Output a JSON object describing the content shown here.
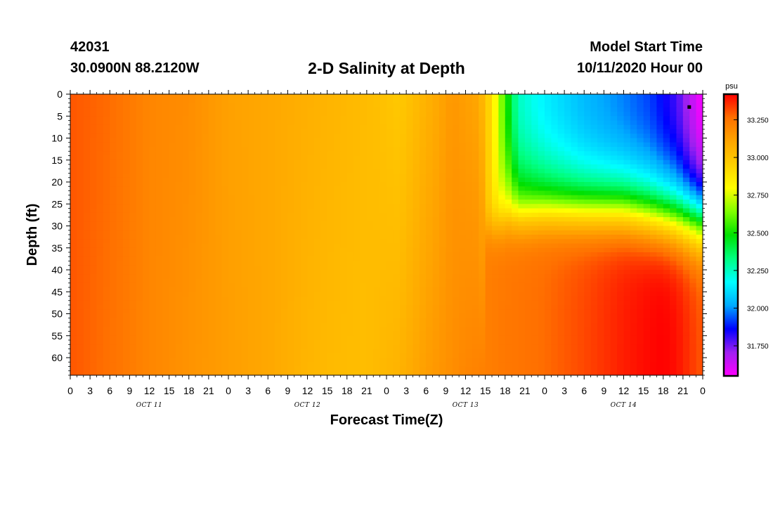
{
  "header": {
    "station_id": "42031",
    "location": "30.0900N 88.2120W",
    "title": "2-D Salinity at Depth",
    "model_start_label": "Model Start Time",
    "model_start_value": "10/11/2020 Hour 00"
  },
  "chart_data": {
    "type": "heatmap",
    "title": "2-D Salinity at Depth",
    "xlabel": "Forecast Time(Z)",
    "ylabel": "Depth (ft)",
    "x_range_hours": [
      0,
      96
    ],
    "y_range_ft": [
      0,
      64
    ],
    "x_tick_labels": [
      "0",
      "3",
      "6",
      "9",
      "12",
      "15",
      "18",
      "21",
      "0",
      "3",
      "6",
      "9",
      "12",
      "15",
      "18",
      "21",
      "0",
      "3",
      "6",
      "9",
      "12",
      "15",
      "18",
      "21",
      "0",
      "3",
      "6",
      "9",
      "12",
      "15",
      "18",
      "21",
      "0"
    ],
    "y_ticks": [
      0,
      5,
      10,
      15,
      20,
      25,
      30,
      35,
      40,
      45,
      50,
      55,
      60
    ],
    "day_labels": [
      {
        "label": "OCT 11",
        "center_hour": 12
      },
      {
        "label": "OCT 12",
        "center_hour": 36
      },
      {
        "label": "OCT 13",
        "center_hour": 60
      },
      {
        "label": "OCT 14",
        "center_hour": 84
      }
    ],
    "colorbar": {
      "unit": "psu",
      "min": 31.55,
      "max": 33.42,
      "ticks": [
        31.75,
        32.0,
        32.25,
        32.5,
        32.75,
        33.0,
        33.25
      ],
      "tick_labels": [
        "31.750",
        "32.000",
        "32.250",
        "32.500",
        "32.750",
        "33.000",
        "33.250"
      ],
      "colors": [
        "#ff00ff",
        "#a020f0",
        "#0000ff",
        "#00aaff",
        "#00ffff",
        "#00ff80",
        "#00e000",
        "#80ff00",
        "#ffff00",
        "#ffd000",
        "#ffa500",
        "#ff7000",
        "#ff0000"
      ]
    },
    "surface_profile_psu": [
      [
        0,
        33.3
      ],
      [
        6,
        33.27
      ],
      [
        12,
        33.2
      ],
      [
        18,
        33.18
      ],
      [
        24,
        33.12
      ],
      [
        30,
        33.1
      ],
      [
        36,
        33.07
      ],
      [
        40,
        33.05
      ],
      [
        46,
        33.02
      ],
      [
        50,
        32.98
      ],
      [
        55,
        33.08
      ],
      [
        58,
        33.15
      ],
      [
        62,
        33.1
      ],
      [
        63,
        33.0
      ],
      [
        64,
        32.9
      ],
      [
        65,
        32.72
      ],
      [
        66,
        32.55
      ],
      [
        67,
        32.4
      ],
      [
        68,
        32.25
      ],
      [
        72,
        32.15
      ],
      [
        78,
        32.05
      ],
      [
        84,
        31.98
      ],
      [
        88,
        31.92
      ],
      [
        92,
        31.8
      ],
      [
        96,
        31.55
      ]
    ],
    "bottom_profile_psu": [
      [
        0,
        33.3
      ],
      [
        6,
        33.26
      ],
      [
        12,
        33.2
      ],
      [
        18,
        33.16
      ],
      [
        24,
        33.13
      ],
      [
        30,
        33.1
      ],
      [
        36,
        33.05
      ],
      [
        40,
        33.03
      ],
      [
        45,
        33.02
      ],
      [
        50,
        33.06
      ],
      [
        54,
        33.13
      ],
      [
        60,
        33.2
      ],
      [
        66,
        33.24
      ],
      [
        72,
        33.27
      ],
      [
        78,
        33.32
      ],
      [
        84,
        33.38
      ],
      [
        88,
        33.41
      ],
      [
        90,
        33.42
      ],
      [
        92,
        33.4
      ],
      [
        96,
        33.3
      ]
    ],
    "halocline_depth_ft": [
      [
        64,
        30
      ],
      [
        66,
        30
      ],
      [
        68,
        29
      ],
      [
        72,
        28
      ],
      [
        78,
        28
      ],
      [
        84,
        28
      ],
      [
        88,
        29
      ],
      [
        92,
        30
      ],
      [
        96,
        31
      ]
    ],
    "marker": {
      "hour": 94,
      "depth_ft": 3
    }
  }
}
